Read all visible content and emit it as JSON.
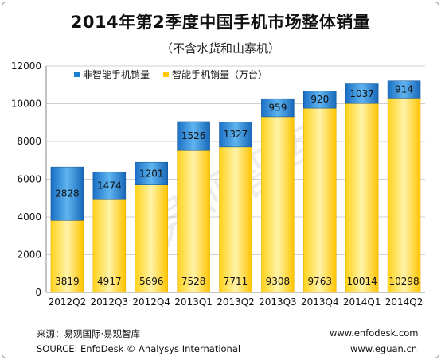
{
  "header": {
    "title": "2014年第2季度中国手机市场整体销量",
    "subtitle": "（不含水货和山寨机）"
  },
  "watermark": "易观智库",
  "footer": {
    "source_cn": "来源：易观国际·易观智库",
    "source_en": "SOURCE: EnfoDesk © Analysys International",
    "url1": "www.enfodesk.com",
    "url2": "www.eguan.cn"
  },
  "colors": {
    "non_smart": "#1f7fd1",
    "smart": "#ffc800",
    "grid": "#d0d0d0"
  },
  "chart_data": {
    "type": "bar",
    "stacked": true,
    "title": "2014年第2季度中国手机市场整体销量",
    "subtitle": "（不含水货和山寨机）",
    "categories": [
      "2012Q2",
      "2012Q3",
      "2012Q4",
      "2013Q1",
      "2013Q2",
      "2013Q3",
      "2013Q4",
      "2014Q1",
      "2014Q2"
    ],
    "series": [
      {
        "name": "智能手机销量（万台）",
        "values": [
          3819,
          4917,
          5696,
          7528,
          7711,
          9308,
          9763,
          10014,
          10298
        ]
      },
      {
        "name": "非智能手机销量",
        "values": [
          2828,
          1474,
          1201,
          1526,
          1327,
          959,
          920,
          1037,
          914
        ]
      }
    ],
    "legend": [
      "非智能手机销量",
      "智能手机销量（万台）"
    ],
    "legend_position": "top-left",
    "ylim": [
      0,
      12000
    ],
    "yticks": [
      0,
      2000,
      4000,
      6000,
      8000,
      10000,
      12000
    ],
    "grid": true
  }
}
